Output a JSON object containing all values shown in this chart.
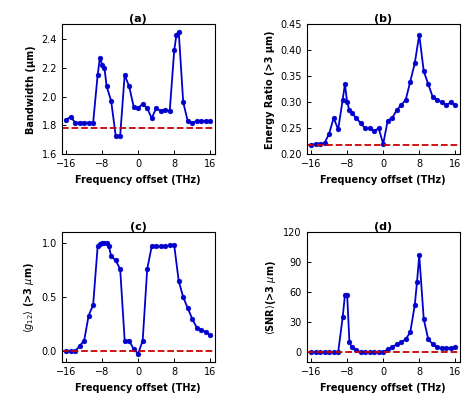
{
  "title_a": "(a)",
  "title_b": "(b)",
  "title_c": "(c)",
  "title_d": "(d)",
  "xlabel": "Frequency offset (THz)",
  "ylabel_a": "Bandwidth (μm)",
  "ylabel_b": "Energy Ratio (>3 μm)",
  "ylabel_c": "<g_12> (>3 μm)",
  "ylabel_d": "<SNR>(>3 μm)",
  "line_color": "#0000cc",
  "dashed_color": "#cc0000",
  "marker": "o",
  "markersize": 3.5,
  "linewidth": 1.3,
  "xlim": [
    -17,
    17
  ],
  "xticks": [
    -16,
    -8,
    0,
    8,
    16
  ],
  "freq_a": [
    -16,
    -15,
    -14,
    -13,
    -12,
    -11,
    -10,
    -9,
    -8.5,
    -8,
    -7.5,
    -7,
    -6,
    -5,
    -4,
    -3,
    -2,
    -1,
    0,
    1,
    2,
    3,
    4,
    5,
    6,
    7,
    8,
    8.5,
    9,
    10,
    11,
    12,
    13,
    14,
    15,
    16
  ],
  "val_a": [
    1.84,
    1.86,
    1.82,
    1.82,
    1.82,
    1.82,
    1.82,
    2.15,
    2.27,
    2.22,
    2.2,
    2.07,
    1.97,
    1.73,
    1.73,
    2.15,
    2.07,
    1.93,
    1.92,
    1.95,
    1.92,
    1.85,
    1.92,
    1.9,
    1.91,
    1.9,
    2.32,
    2.43,
    2.45,
    1.96,
    1.83,
    1.82,
    1.83,
    1.83,
    1.83,
    1.83
  ],
  "dashed_a": 1.78,
  "ylim_a": [
    1.6,
    2.5
  ],
  "yticks_a": [
    1.6,
    1.8,
    2.0,
    2.2,
    2.4
  ],
  "freq_b": [
    -16,
    -15,
    -14,
    -13,
    -12,
    -11,
    -10,
    -9,
    -8.5,
    -8,
    -7.5,
    -7,
    -6,
    -5,
    -4,
    -3,
    -2,
    -1,
    0,
    1,
    2,
    3,
    4,
    5,
    6,
    7,
    8,
    9,
    10,
    11,
    12,
    13,
    14,
    15,
    16
  ],
  "val_b": [
    0.218,
    0.22,
    0.22,
    0.222,
    0.24,
    0.27,
    0.248,
    0.305,
    0.335,
    0.3,
    0.285,
    0.28,
    0.27,
    0.26,
    0.25,
    0.25,
    0.245,
    0.25,
    0.22,
    0.265,
    0.27,
    0.285,
    0.295,
    0.305,
    0.34,
    0.375,
    0.43,
    0.36,
    0.335,
    0.31,
    0.305,
    0.3,
    0.295,
    0.3,
    0.295
  ],
  "dashed_b": 0.218,
  "ylim_b": [
    0.2,
    0.45
  ],
  "yticks_b": [
    0.2,
    0.25,
    0.3,
    0.35,
    0.4,
    0.45
  ],
  "freq_c": [
    -16,
    -15,
    -14,
    -13,
    -12,
    -11,
    -10,
    -9,
    -8.5,
    -8,
    -7.5,
    -7,
    -6.5,
    -6,
    -5,
    -4,
    -3,
    -2,
    -1,
    0,
    1,
    2,
    3,
    4,
    5,
    6,
    7,
    8,
    9,
    10,
    11,
    12,
    13,
    14,
    15,
    16
  ],
  "val_c": [
    0.0,
    0.0,
    0.0,
    0.05,
    0.1,
    0.33,
    0.43,
    0.97,
    0.99,
    1.0,
    1.0,
    1.0,
    0.97,
    0.88,
    0.84,
    0.76,
    0.1,
    0.1,
    0.02,
    -0.02,
    0.1,
    0.76,
    0.97,
    0.97,
    0.97,
    0.97,
    0.98,
    0.98,
    0.65,
    0.5,
    0.4,
    0.3,
    0.22,
    0.2,
    0.18,
    0.15
  ],
  "dashed_c": 0.0,
  "ylim_c": [
    -0.1,
    1.1
  ],
  "yticks_c": [
    0.0,
    0.5,
    1.0
  ],
  "freq_d": [
    -16,
    -15,
    -14,
    -13,
    -12,
    -11,
    -10,
    -9,
    -8.5,
    -8,
    -7.5,
    -7,
    -6,
    -5,
    -4,
    -3,
    -2,
    -1,
    0,
    1,
    2,
    3,
    4,
    5,
    6,
    7,
    7.5,
    8,
    9,
    10,
    11,
    12,
    13,
    14,
    15,
    16
  ],
  "val_d": [
    0,
    0,
    0,
    0,
    0,
    0,
    0,
    35,
    57,
    57,
    10,
    5,
    2,
    0,
    0,
    0,
    0,
    0,
    0,
    3,
    5,
    8,
    10,
    13,
    20,
    47,
    70,
    97,
    33,
    13,
    8,
    5,
    4,
    4,
    4,
    5
  ],
  "dashed_d": 0,
  "ylim_d": [
    -10,
    120
  ],
  "yticks_d": [
    0,
    30,
    60,
    90,
    120
  ]
}
